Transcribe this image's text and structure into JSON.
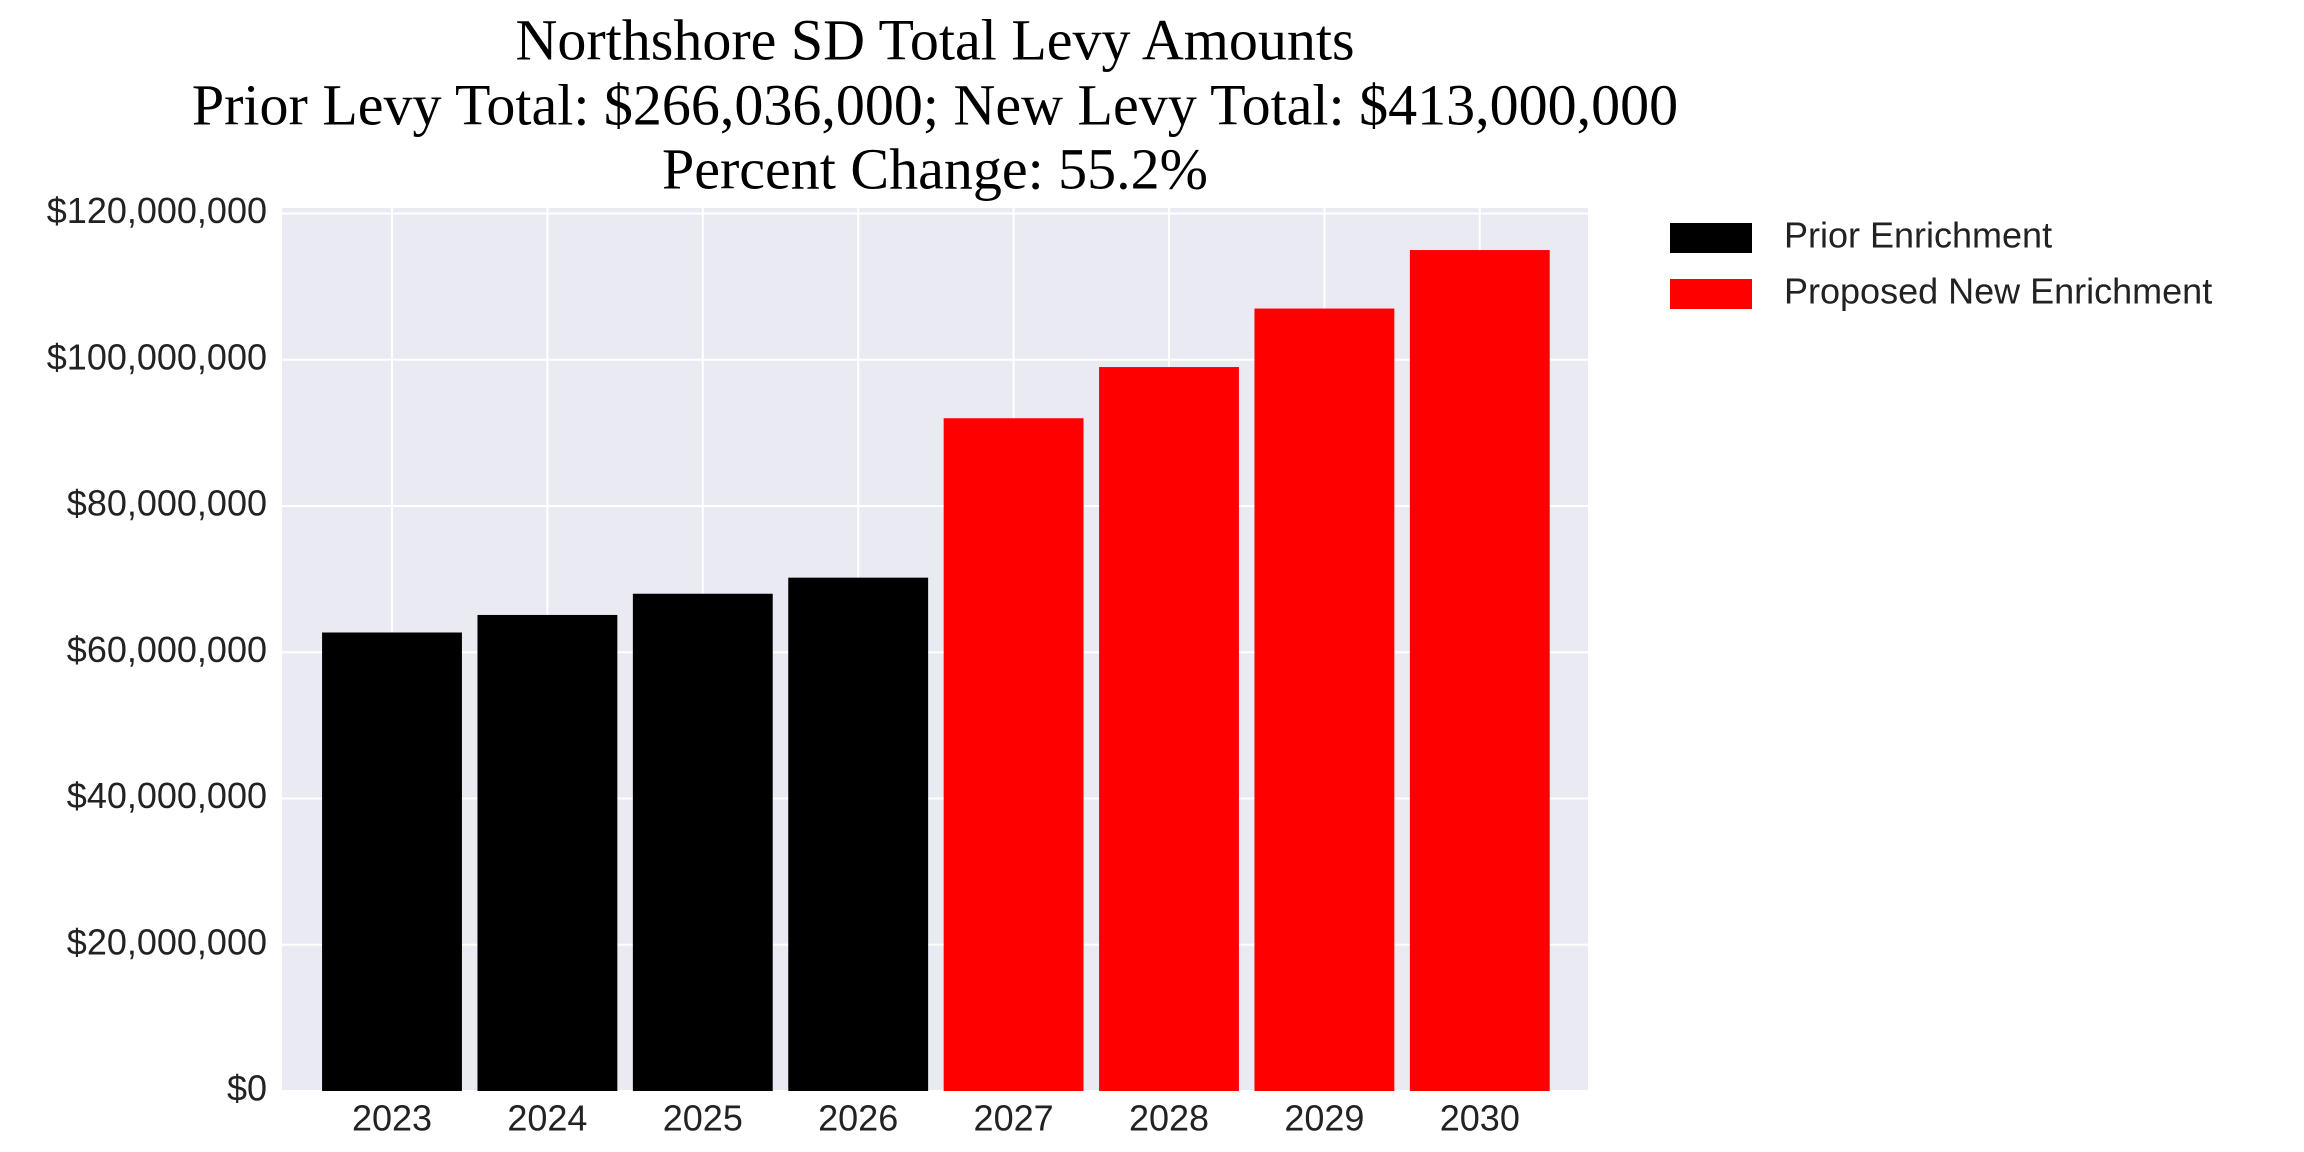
{
  "chart_data": {
    "type": "bar",
    "title": [
      "Northshore SD Total Levy Amounts",
      "Prior Levy Total:  $266,036,000; New Levy Total: $413,000,000",
      "Percent Change: 55.2%"
    ],
    "categories": [
      "2023",
      "2024",
      "2025",
      "2026",
      "2027",
      "2028",
      "2029",
      "2030"
    ],
    "series": [
      {
        "name": "Prior Enrichment",
        "color": "#000000",
        "values": [
          62700000,
          65100000,
          68000000,
          70200000,
          null,
          null,
          null,
          null
        ]
      },
      {
        "name": "Proposed New Enrichment",
        "color": "#ff0000",
        "values": [
          null,
          null,
          null,
          null,
          92000000,
          99000000,
          107000000,
          115000000
        ]
      }
    ],
    "ylim": [
      0,
      120750000
    ],
    "yticks": [
      {
        "value": 0,
        "label": "$0"
      },
      {
        "value": 20000000,
        "label": "$20,000,000"
      },
      {
        "value": 40000000,
        "label": "$40,000,000"
      },
      {
        "value": 60000000,
        "label": "$60,000,000"
      },
      {
        "value": 80000000,
        "label": "$80,000,000"
      },
      {
        "value": 100000000,
        "label": "$100,000,000"
      },
      {
        "value": 120000000,
        "label": "$120,000,000"
      }
    ],
    "grid": true,
    "legend": "outside-upper-right"
  }
}
